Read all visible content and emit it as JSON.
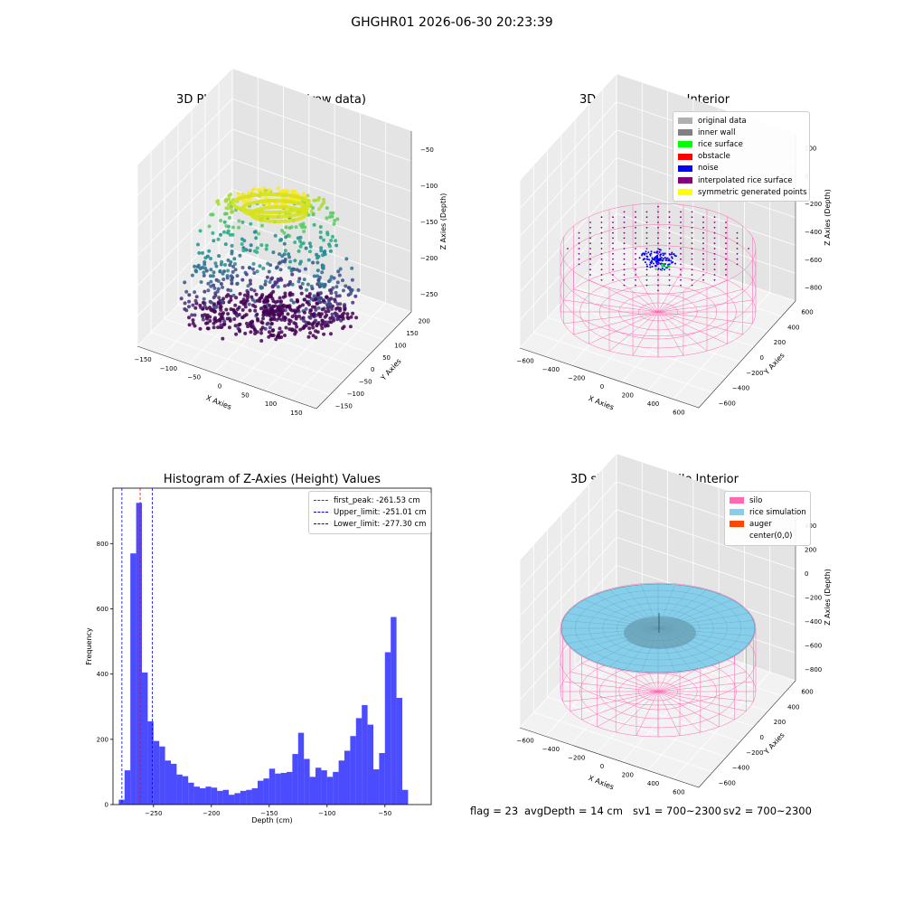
{
  "suptitle": "GHGHR01 2026-06-30 20:23:39",
  "plots": {
    "raw": {
      "title": "3D Plot of Silo Interior(row data)",
      "xlabel": "X Axies",
      "ylabel": "Y Axies",
      "zlabel": "Z Axies (Depth)",
      "xticks": [
        "−150",
        "−100",
        "−50",
        "0",
        "50",
        "100",
        "150"
      ],
      "yticks": [
        "−150",
        "−100",
        "−50",
        "0",
        "50",
        "100",
        "150",
        "200"
      ],
      "zticks": [
        "−50",
        "−100",
        "−150",
        "−200",
        "−250"
      ]
    },
    "classify": {
      "title": "3D classify of Silo Interior",
      "xlabel": "X Axies",
      "ylabel": "Y Axies",
      "zlabel": "Z Axies (Depth)",
      "xticks": [
        "−600",
        "−400",
        "−200",
        "0",
        "200",
        "400",
        "600"
      ],
      "yticks": [
        "−600",
        "−400",
        "−200",
        "0",
        "200",
        "400",
        "600"
      ],
      "zticks": [
        "200",
        "0",
        "−200",
        "−400",
        "−600",
        "−800"
      ],
      "legend": [
        {
          "label": "original data",
          "color": "#b0b0b0"
        },
        {
          "label": "inner wall",
          "color": "#808080"
        },
        {
          "label": "rice surface",
          "color": "#00ff00"
        },
        {
          "label": "obstacle",
          "color": "#ff0000"
        },
        {
          "label": "noise",
          "color": "#0000ff"
        },
        {
          "label": "interpolated rice surface",
          "color": "#800080"
        },
        {
          "label": "symmetric generated points",
          "color": "#ffff00"
        }
      ]
    },
    "simulation": {
      "title": "3D simulation of Silo Interior",
      "xlabel": "X Axies",
      "ylabel": "Y Axies",
      "zlabel": "Z Axies (Depth)",
      "xticks": [
        "−600",
        "−400",
        "−200",
        "0",
        "200",
        "400",
        "600"
      ],
      "yticks": [
        "−600",
        "−400",
        "−200",
        "0",
        "200",
        "400",
        "600"
      ],
      "zticks": [
        "400",
        "200",
        "0",
        "−200",
        "−400",
        "−600",
        "−800"
      ],
      "legend": [
        {
          "label": "silo",
          "color": "#ff69b4"
        },
        {
          "label": "rice simulation",
          "color": "#87ceeb"
        },
        {
          "label": "auger",
          "color": "#ff4500"
        },
        {
          "label": "center(0,0)",
          "color": ""
        }
      ]
    }
  },
  "chart_data": {
    "type": "bar",
    "title": "Histogram of Z-Axies (Height) Values",
    "xlabel": "Depth (cm)",
    "ylabel": "Frequency",
    "xlim": [
      -285,
      -10
    ],
    "ylim": [
      0,
      970
    ],
    "bin_start": -280,
    "bin_width": 5,
    "values": [
      15,
      105,
      770,
      925,
      405,
      255,
      195,
      178,
      135,
      125,
      92,
      87,
      67,
      55,
      50,
      55,
      52,
      42,
      45,
      30,
      35,
      42,
      45,
      50,
      73,
      80,
      110,
      95,
      97,
      100,
      155,
      220,
      140,
      85,
      113,
      105,
      85,
      100,
      135,
      165,
      210,
      265,
      305,
      245,
      108,
      158,
      467,
      575,
      327,
      45
    ],
    "xticks": [
      -250,
      -200,
      -150,
      -100,
      -50
    ],
    "xtick_labels": [
      "−250",
      "−200",
      "−150",
      "−100",
      "−50"
    ],
    "yticks": [
      0,
      200,
      400,
      600,
      800
    ],
    "bar_color": "#0000ff",
    "bar_alpha": 0.7,
    "vlines": [
      {
        "label": "first_peak: -261.53 cm",
        "x": -261.53,
        "color": "#ff0000"
      },
      {
        "label": "Upper_limit: -251.01 cm",
        "x": -251.01,
        "color": "#0000ff"
      },
      {
        "label": "Lower_limit: -277.30 cm",
        "x": -277.3,
        "color": "#0000ff"
      }
    ],
    "legend_position": "upper right"
  },
  "status": {
    "flag": "flag = 23",
    "avg_depth": "avgDepth = 14 cm",
    "sv1": "sv1 = 700~2300",
    "sv2": "sv2 = 700~2300"
  }
}
